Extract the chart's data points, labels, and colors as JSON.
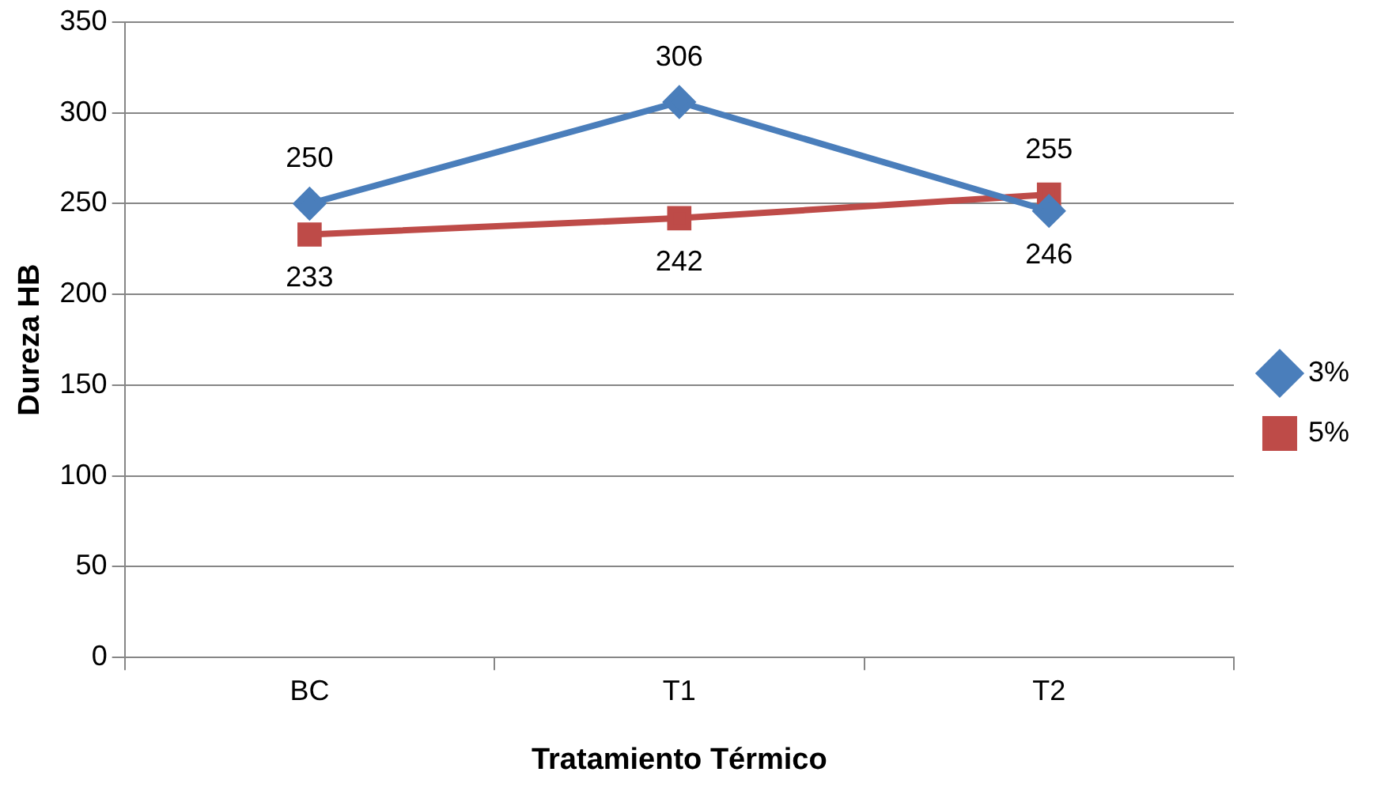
{
  "chart_data": {
    "type": "line",
    "xlabel": "Tratamiento Térmico",
    "ylabel": "Dureza HB",
    "categories": [
      "BC",
      "T1",
      "T2"
    ],
    "series": [
      {
        "name": "3%",
        "color": "#4a7ebb",
        "values": [
          250,
          306,
          246
        ],
        "marker": "diamond"
      },
      {
        "name": "5%",
        "color": "#be4b48",
        "values": [
          233,
          242,
          255
        ],
        "marker": "square"
      }
    ],
    "ylim": [
      0,
      350
    ],
    "yticks": [
      0,
      50,
      100,
      150,
      200,
      250,
      300,
      350
    ],
    "grid": "y",
    "legend": "right",
    "data_labels": true,
    "line_style": "solid"
  }
}
